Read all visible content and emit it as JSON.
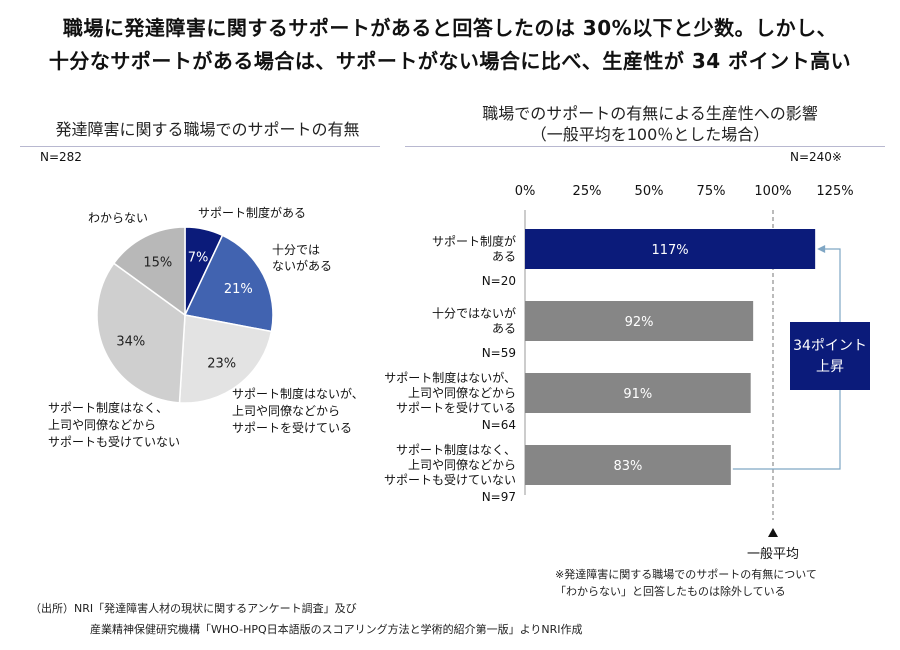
{
  "headline": {
    "line1": "職場に発達障害に関するサポートがあると回答したのは 30%以下と少数。しかし、",
    "line2": "十分なサポートがある場合は、サポートがない場合に比べ、生産性が 34 ポイント高い"
  },
  "chart_data": [
    {
      "type": "pie",
      "title": "発達障害に関する職場でのサポートの有無",
      "sample": "N=282",
      "slices": [
        {
          "label": "サポート制度がある",
          "value": 7,
          "value_label": "7%",
          "color": "#0b1b7a",
          "label_color": "#ffffff"
        },
        {
          "label": "十分ではないがある",
          "value": 21,
          "value_label": "21%",
          "color": "#4163b0",
          "label_color": "#ffffff"
        },
        {
          "label": "サポート制度はないが、上司や同僚などからサポートを受けている",
          "value": 23,
          "value_label": "23%",
          "color": "#e3e3e3",
          "label_color": "#222222"
        },
        {
          "label": "サポート制度はなく、上司や同僚などからサポートも受けていない",
          "value": 34,
          "value_label": "34%",
          "color": "#cfcfcf",
          "label_color": "#222222"
        },
        {
          "label": "わからない",
          "value": 15,
          "value_label": "15%",
          "color": "#b8b8b8",
          "label_color": "#222222"
        }
      ],
      "outer_labels": [
        [
          "サポート制度がある"
        ],
        [
          "十分では",
          "ないがある"
        ],
        [
          "サポート制度はないが、",
          "上司や同僚などから",
          "サポートを受けている"
        ],
        [
          "サポート制度はなく、",
          "上司や同僚などから",
          "サポートも受けていない"
        ],
        [
          "わからない"
        ]
      ]
    },
    {
      "type": "bar",
      "orientation": "horizontal",
      "title": "職場でのサポートの有無による生産性への影響",
      "subtitle": "（一般平均を100％とした場合）",
      "sample": "N=240※",
      "xlim": [
        0,
        125
      ],
      "ticks": [
        0,
        25,
        50,
        75,
        100,
        125
      ],
      "tick_labels": [
        "0%",
        "25%",
        "50%",
        "75%",
        "100%",
        "125%"
      ],
      "reference_line": {
        "value": 100,
        "label": "一般平均"
      },
      "bars": [
        {
          "category_lines": [
            "サポート制度が",
            "ある"
          ],
          "value": 117,
          "value_label": "117%",
          "n": "N=20",
          "color": "#0b1b7a"
        },
        {
          "category_lines": [
            "十分ではないが",
            "ある"
          ],
          "value": 92,
          "value_label": "92%",
          "n": "N=59",
          "color": "#868686"
        },
        {
          "category_lines": [
            "サポート制度はないが、",
            "上司や同僚などから",
            "サポートを受けている"
          ],
          "value": 91,
          "value_label": "91%",
          "n": "N=64",
          "color": "#868686"
        },
        {
          "category_lines": [
            "サポート制度はなく、",
            "上司や同僚などから",
            "サポートも受けていない"
          ],
          "value": 83,
          "value_label": "83%",
          "n": "N=97",
          "color": "#868686"
        }
      ],
      "annotation": {
        "lines": [
          "34ポイント",
          "上昇"
        ],
        "color": "#0b1b7a"
      }
    }
  ],
  "footnote": {
    "line1": "※発達障害に関する職場でのサポートの有無について",
    "line2": "「わからない」と回答したものは除外している"
  },
  "source": {
    "line1": "（出所）NRI「発達障害人材の現状に関するアンケート調査」及び",
    "line2": "産業精神保健研究機構「WHO-HPQ日本語版のスコアリング方法と学術的紹介第一版」よりNRI作成"
  }
}
